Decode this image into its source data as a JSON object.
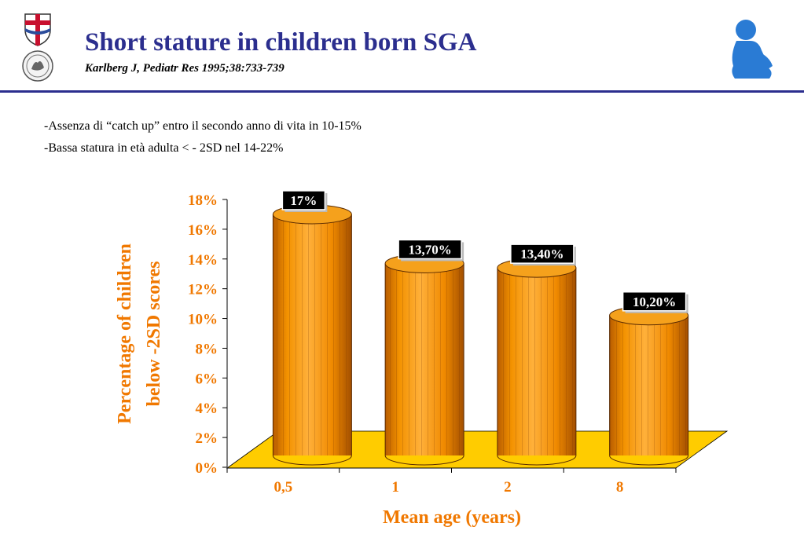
{
  "header": {
    "title": "Short stature in children born SGA",
    "citation": "Karlberg J, Pediatr Res 1995;38:733-739"
  },
  "notes": [
    "-Assenza di “catch up” entro il secondo anno di vita in 10-15%",
    "-Bassa statura in età adulta  < - 2SD nel 14-22%"
  ],
  "icons": {
    "logo_top": "coat-of-arms-icon",
    "logo_bottom": "seal-icon",
    "right": "child-silhouette-icon"
  },
  "colors": {
    "title": "#2b2e8e",
    "bar": "#f39200",
    "floor": "#ffcc00",
    "axis_labels": "#f07800"
  },
  "chart_data": {
    "type": "bar",
    "categories": [
      "0,5",
      "1",
      "2",
      "8"
    ],
    "values": [
      17,
      13.7,
      13.4,
      10.2
    ],
    "data_labels": [
      "17%",
      "13,70%",
      "13,40%",
      "10,20%"
    ],
    "ylim": [
      0,
      18
    ],
    "yticks": [
      "0%",
      "2%",
      "4%",
      "6%",
      "8%",
      "10%",
      "12%",
      "14%",
      "16%",
      "18%"
    ],
    "xlabel": "Mean age (years)",
    "ylabel": [
      "Percentage of children",
      "below -2SD scores"
    ],
    "grid": false,
    "legend": "none"
  }
}
